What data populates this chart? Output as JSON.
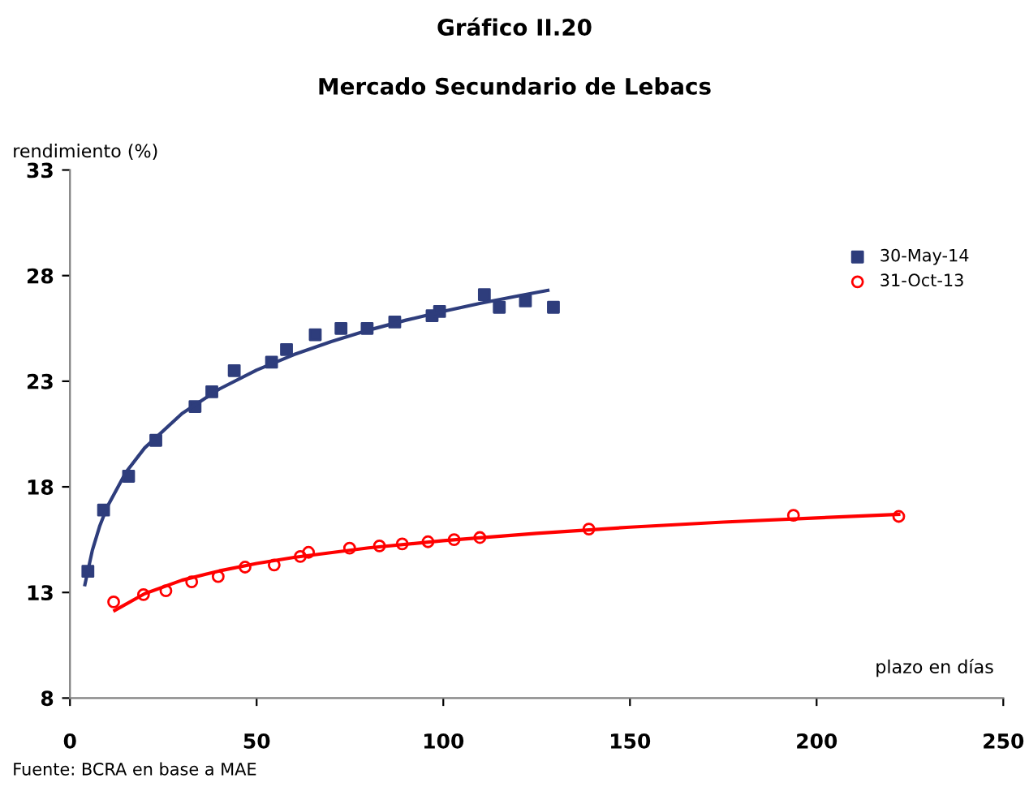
{
  "chart_data": {
    "type": "scatter",
    "title": "Gráfico II.20",
    "subtitle": "Mercado Secundario de Lebacs",
    "xlabel": "plazo en días",
    "ylabel": "rendimiento (%)",
    "annotations": [
      "Fuente: BCRA en base a MAE"
    ],
    "xlim": [
      0,
      250
    ],
    "xticks": [
      0,
      50,
      100,
      150,
      200,
      250
    ],
    "ylim": [
      8,
      33
    ],
    "yticks": [
      8,
      13,
      18,
      23,
      28,
      33
    ],
    "grid": false,
    "legend": "top right",
    "series": [
      {
        "name": "30-May-14",
        "color": "#2e3d7c",
        "marker": "square",
        "x": [
          4.8,
          9,
          15.7,
          23,
          33.5,
          38,
          44,
          54,
          58,
          65.7,
          72.6,
          79.6,
          87,
          97,
          99,
          111,
          115,
          122,
          129.5
        ],
        "values": [
          14.0,
          16.9,
          18.5,
          20.2,
          21.8,
          22.5,
          23.5,
          23.9,
          24.5,
          25.2,
          25.5,
          25.5,
          25.8,
          26.1,
          26.3,
          27.1,
          26.5,
          26.8,
          26.5
        ]
      },
      {
        "name": "31-Oct-13",
        "color": "#ff0000",
        "marker": "circle",
        "x": [
          11.7,
          19.7,
          25.7,
          32.6,
          39.7,
          46.9,
          54.7,
          61.7,
          63.9,
          74.9,
          82.9,
          89,
          95.9,
          102.9,
          109.8,
          139,
          193.8,
          222
        ],
        "values": [
          12.55,
          12.9,
          13.08,
          13.5,
          13.75,
          14.2,
          14.3,
          14.7,
          14.9,
          15.1,
          15.2,
          15.3,
          15.4,
          15.5,
          15.6,
          16.0,
          16.65,
          16.6
        ]
      },
      {
        "type": "line",
        "color": "#2e3d7c",
        "marker": "none",
        "line_style": "solid",
        "x": [
          4,
          6,
          8,
          10,
          15,
          20,
          30,
          40,
          50,
          60,
          70,
          80,
          90,
          100,
          110,
          120,
          128
        ],
        "values": [
          13.37,
          15.0,
          16.16,
          17.06,
          18.69,
          19.84,
          21.47,
          22.63,
          23.53,
          24.26,
          24.88,
          25.42,
          25.89,
          26.31,
          26.69,
          27.04,
          27.3
        ]
      },
      {
        "type": "line",
        "color": "#ff0000",
        "marker": "none",
        "line_style": "solid",
        "x": [
          12,
          20,
          30,
          40,
          50,
          60,
          80,
          100,
          125,
          150,
          175,
          200,
          222
        ],
        "values": [
          12.15,
          12.94,
          13.58,
          14.02,
          14.37,
          14.66,
          15.11,
          15.45,
          15.8,
          16.09,
          16.33,
          16.53,
          16.7
        ]
      }
    ]
  }
}
